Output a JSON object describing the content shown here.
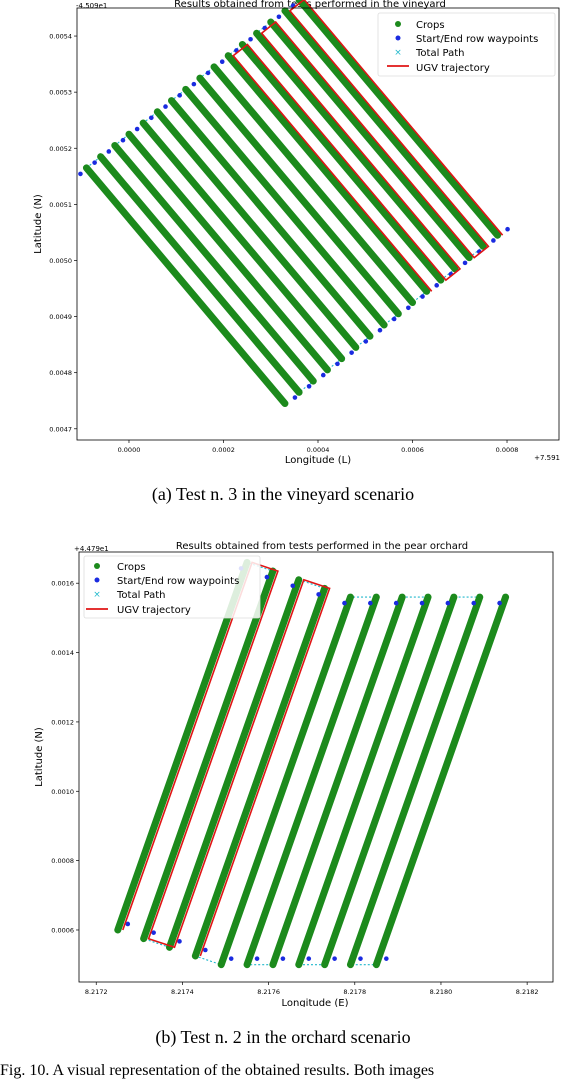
{
  "figure_caption": "Fig. 10.  A visual representation of the obtained results. Both images",
  "chart_data": [
    {
      "type": "scatter",
      "caption": "(a) Test n. 3 in the vineyard scenario",
      "title": "Results obtained from tests performed in the vineyard",
      "xlabel": "Longitude (L)",
      "ylabel": "Latitude (N)",
      "x_offset": "+7.591",
      "y_offset": "-4.509e1",
      "x_ticks": [
        "0.0000",
        "0.0002",
        "0.0004",
        "0.0006",
        "0.0008"
      ],
      "y_ticks": [
        "0.0047",
        "0.0048",
        "0.0049",
        "0.0050",
        "0.0051",
        "0.0052",
        "0.0053",
        "0.0054"
      ],
      "xlim": [
        -0.00011,
        0.00091
      ],
      "ylim": [
        0.00468,
        0.00545
      ],
      "legend_position": "top-right",
      "legend": [
        "Crops",
        "Start/End row waypoints",
        "Total Path",
        "UGV trajectory"
      ],
      "colors": {
        "crops": "#1c8a1c",
        "waypoints": "#1a2be0",
        "path": "#20b8cc",
        "ugv": "#e01515"
      },
      "rows": [
        {
          "start": [
            0.00033,
            0.004745
          ],
          "end": [
            -9e-05,
            0.005165
          ]
        },
        {
          "start": [
            0.00036,
            0.004765
          ],
          "end": [
            -6e-05,
            0.005185
          ]
        },
        {
          "start": [
            0.00039,
            0.004785
          ],
          "end": [
            -3e-05,
            0.005205
          ]
        },
        {
          "start": [
            0.00042,
            0.004805
          ],
          "end": [
            0.0,
            0.005225
          ]
        },
        {
          "start": [
            0.00045,
            0.004825
          ],
          "end": [
            3e-05,
            0.005245
          ]
        },
        {
          "start": [
            0.00048,
            0.004845
          ],
          "end": [
            6e-05,
            0.005265
          ]
        },
        {
          "start": [
            0.00051,
            0.004865
          ],
          "end": [
            9e-05,
            0.005285
          ]
        },
        {
          "start": [
            0.00054,
            0.004885
          ],
          "end": [
            0.00012,
            0.005305
          ]
        },
        {
          "start": [
            0.00057,
            0.004905
          ],
          "end": [
            0.00015,
            0.005325
          ]
        },
        {
          "start": [
            0.0006,
            0.004925
          ],
          "end": [
            0.00018,
            0.005345
          ]
        },
        {
          "start": [
            0.00063,
            0.004945
          ],
          "end": [
            0.00021,
            0.005365
          ]
        },
        {
          "start": [
            0.00066,
            0.004965
          ],
          "end": [
            0.00024,
            0.005385
          ]
        },
        {
          "start": [
            0.00069,
            0.004985
          ],
          "end": [
            0.00027,
            0.005405
          ]
        },
        {
          "start": [
            0.00072,
            0.005005
          ],
          "end": [
            0.0003,
            0.005425
          ]
        },
        {
          "start": [
            0.00075,
            0.005025
          ],
          "end": [
            0.00033,
            0.005445
          ]
        },
        {
          "start": [
            0.00078,
            0.005045
          ],
          "end": [
            0.00036,
            0.005465
          ]
        }
      ],
      "ugv_rows": [
        10,
        15
      ]
    },
    {
      "type": "scatter",
      "caption": "(b) Test n. 2 in the orchard scenario",
      "title": "Results obtained from tests performed in the pear orchard",
      "xlabel": "Longitude (E)",
      "ylabel": "Latitude (N)",
      "x_offset": "",
      "y_offset": "+4.479e1",
      "x_ticks": [
        "8.2172",
        "8.2174",
        "8.2176",
        "8.2178",
        "8.2180",
        "8.2182"
      ],
      "y_ticks": [
        "0.0006",
        "0.0008",
        "0.0010",
        "0.0012",
        "0.0014",
        "0.0016"
      ],
      "xlim": [
        8.21716,
        8.21826
      ],
      "ylim": [
        0.00045,
        0.00169
      ],
      "legend_position": "top-left",
      "legend": [
        "Crops",
        "Start/End row waypoints",
        "Total Path",
        "UGV trajectory"
      ],
      "colors": {
        "crops": "#1c8a1c",
        "waypoints": "#1a2be0",
        "path": "#20b8cc",
        "ugv": "#e01515"
      },
      "rows": [
        {
          "start": [
            8.21725,
            0.0006
          ],
          "end": [
            8.21755,
            0.00166
          ]
        },
        {
          "start": [
            8.21731,
            0.000575
          ],
          "end": [
            8.21761,
            0.001635
          ]
        },
        {
          "start": [
            8.21737,
            0.00055
          ],
          "end": [
            8.21767,
            0.00161
          ]
        },
        {
          "start": [
            8.21743,
            0.000525
          ],
          "end": [
            8.21773,
            0.001585
          ]
        },
        {
          "start": [
            8.21749,
            0.0005
          ],
          "end": [
            8.21779,
            0.00156
          ]
        },
        {
          "start": [
            8.21755,
            0.0005
          ],
          "end": [
            8.21785,
            0.00156
          ]
        },
        {
          "start": [
            8.21761,
            0.0005
          ],
          "end": [
            8.21791,
            0.00156
          ]
        },
        {
          "start": [
            8.21767,
            0.0005
          ],
          "end": [
            8.21797,
            0.00156
          ]
        },
        {
          "start": [
            8.21773,
            0.0005
          ],
          "end": [
            8.21803,
            0.00156
          ]
        },
        {
          "start": [
            8.21779,
            0.0005
          ],
          "end": [
            8.21809,
            0.00156
          ]
        },
        {
          "start": [
            8.21785,
            0.0005
          ],
          "end": [
            8.21815,
            0.00156
          ]
        }
      ],
      "ugv_rows": [
        0,
        3
      ]
    }
  ]
}
